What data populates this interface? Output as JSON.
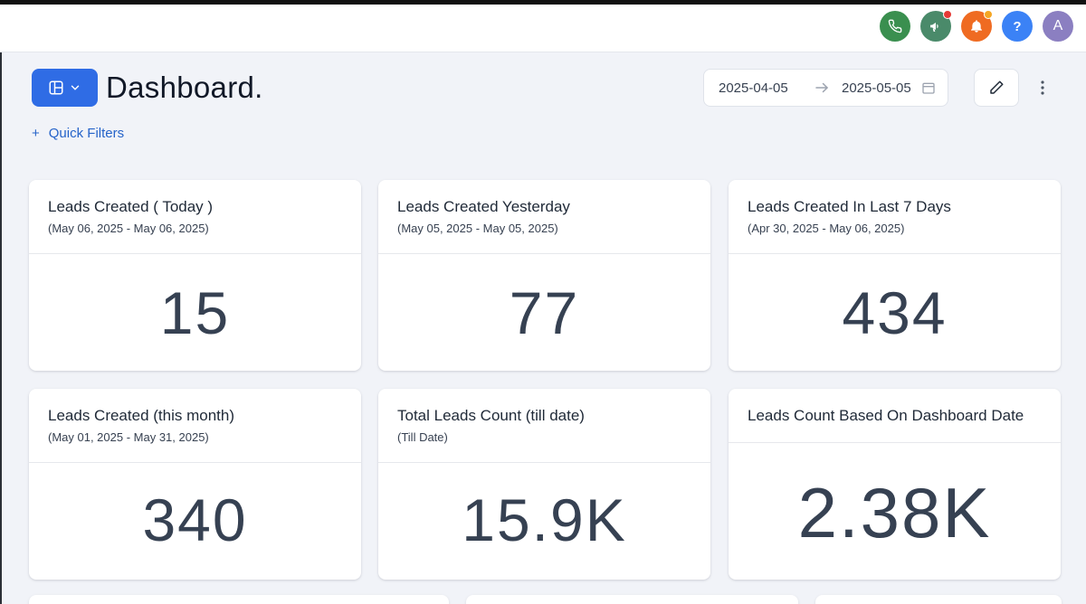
{
  "header": {
    "title": "Dashboard.",
    "avatar_letter": "A",
    "help_label": "?",
    "icons": [
      "phone-icon",
      "megaphone-icon",
      "bell-icon",
      "help-icon",
      "avatar"
    ],
    "colors": {
      "phone": "#3a8f4f",
      "megaphone": "#4a8a6a",
      "bell": "#ef6b22",
      "help": "#3b82f6",
      "avatar": "#8b7fc1",
      "accent": "#2f6ce5"
    }
  },
  "date_range": {
    "start": "2025-04-05",
    "end": "2025-05-05"
  },
  "filters": {
    "quick_filters_label": "Quick Filters"
  },
  "cards": [
    {
      "title": "Leads Created ( Today )",
      "subtitle": "(May 06, 2025 - May 06, 2025)",
      "value": "15"
    },
    {
      "title": "Leads Created Yesterday",
      "subtitle": "(May 05, 2025 - May 05, 2025)",
      "value": "77"
    },
    {
      "title": "Leads Created In Last 7 Days",
      "subtitle": "(Apr 30, 2025 - May 06, 2025)",
      "value": "434"
    },
    {
      "title": "Leads Created (this month)",
      "subtitle": "(May 01, 2025 - May 31, 2025)",
      "value": "340"
    },
    {
      "title": "Total Leads Count (till date)",
      "subtitle": "(Till Date)",
      "value": "15.9K"
    },
    {
      "title": "Leads Count Based On Dashboard Date",
      "subtitle": "",
      "value": "2.38K"
    }
  ]
}
